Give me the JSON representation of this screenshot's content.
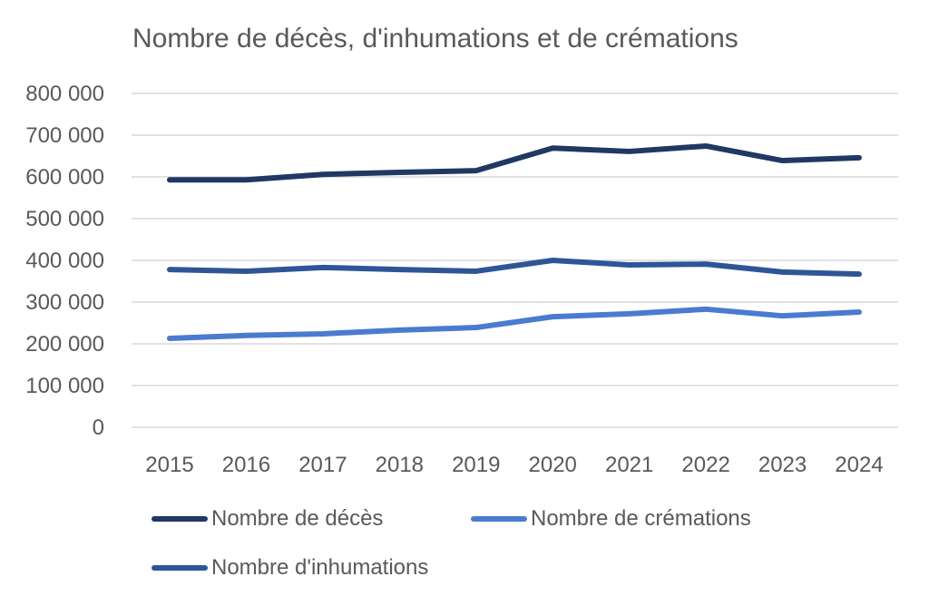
{
  "chart_data": {
    "type": "line",
    "title": "Nombre de décès, d'inhumations et de crémations",
    "xlabel": "",
    "ylabel": "",
    "categories": [
      "2015",
      "2016",
      "2017",
      "2018",
      "2019",
      "2020",
      "2021",
      "2022",
      "2023",
      "2024"
    ],
    "ylim": [
      0,
      800000
    ],
    "yticks": [
      "0",
      "100 000",
      "200 000",
      "300 000",
      "400 000",
      "500 000",
      "600 000",
      "700 000",
      "800 000"
    ],
    "ytick_values": [
      0,
      100000,
      200000,
      300000,
      400000,
      500000,
      600000,
      700000,
      800000
    ],
    "grid": true,
    "legend_position": "bottom",
    "series": [
      {
        "name": "Nombre de décès",
        "color": "#203864",
        "values": [
          593000,
          593000,
          606000,
          611000,
          615000,
          669000,
          661000,
          674000,
          639000,
          646000
        ]
      },
      {
        "name": "Nombre de crémations",
        "color": "#4a7bd0",
        "values": [
          213000,
          220000,
          224000,
          233000,
          239000,
          265000,
          272000,
          283000,
          267000,
          276000
        ]
      },
      {
        "name": "Nombre d'inhumations",
        "color": "#2f5597",
        "values": [
          378000,
          374000,
          383000,
          378000,
          374000,
          400000,
          389000,
          391000,
          372000,
          367000
        ]
      }
    ]
  }
}
